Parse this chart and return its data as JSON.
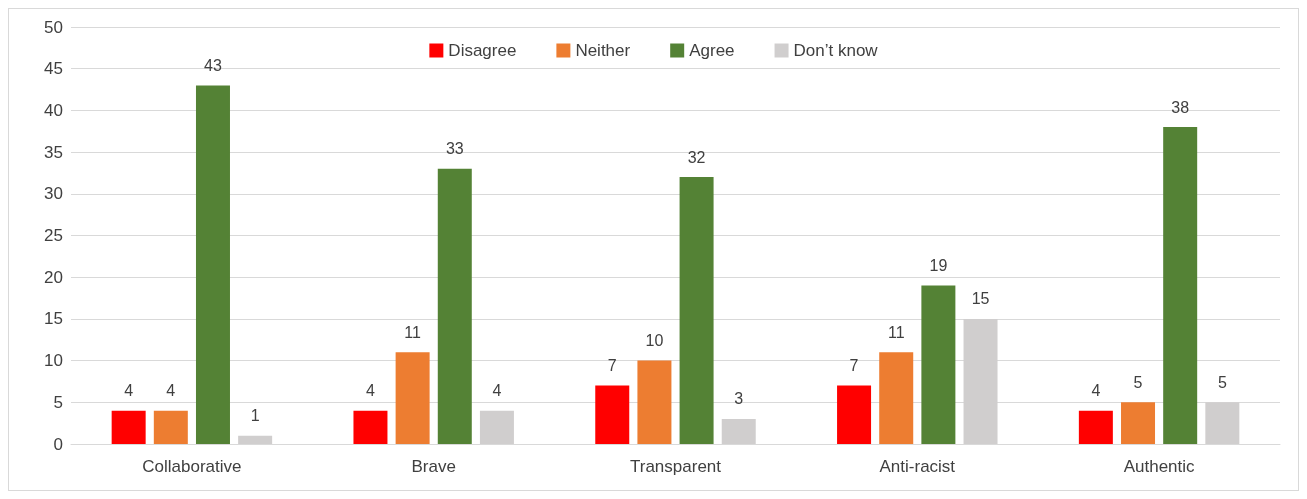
{
  "chart_data": {
    "type": "bar",
    "categories": [
      "Collaborative",
      "Brave",
      "Transparent",
      "Anti-racist",
      "Authentic"
    ],
    "series": [
      {
        "name": "Disagree",
        "color": "#ff0000",
        "values": [
          4,
          4,
          7,
          7,
          4
        ]
      },
      {
        "name": "Neither",
        "color": "#ed7d31",
        "values": [
          4,
          11,
          10,
          11,
          5
        ]
      },
      {
        "name": "Agree",
        "color": "#548235",
        "values": [
          43,
          33,
          32,
          19,
          38
        ]
      },
      {
        "name": "Don’t know",
        "color": "#d0cece",
        "values": [
          1,
          4,
          3,
          15,
          5
        ]
      }
    ],
    "ylim": [
      0,
      50
    ],
    "yticks": [
      0,
      5,
      10,
      15,
      20,
      25,
      30,
      35,
      40,
      45,
      50
    ],
    "grid": "y",
    "legend": "top",
    "data_labels": true
  }
}
